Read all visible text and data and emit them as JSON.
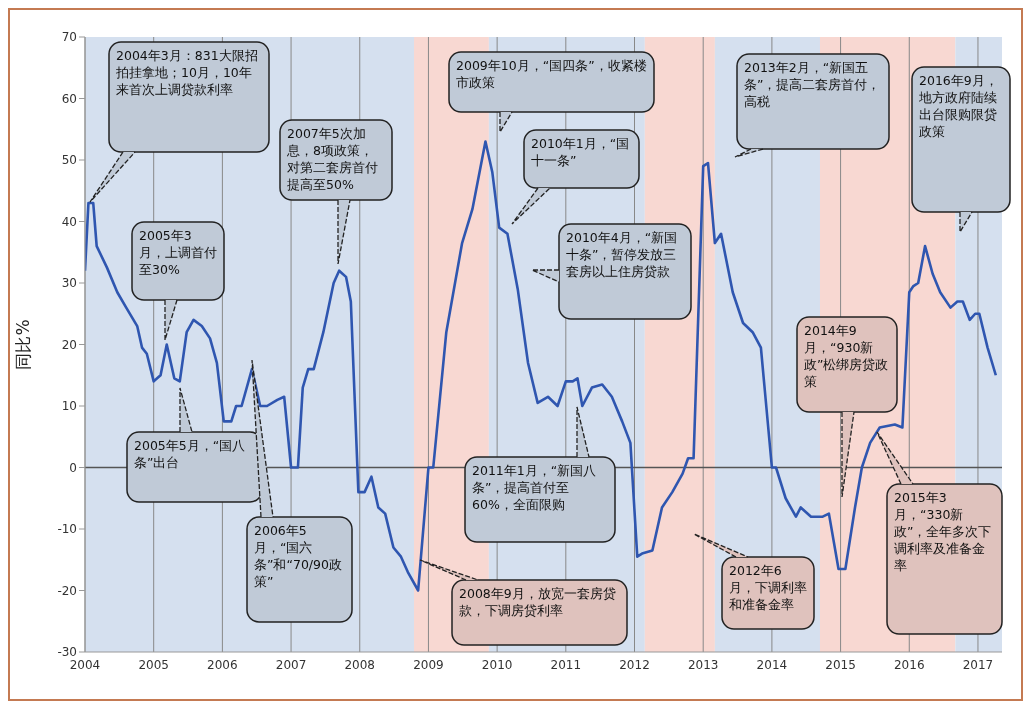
{
  "chart_data": {
    "type": "line",
    "ylabel": "同比%",
    "x": [
      2004.0,
      2004.05,
      2004.12,
      2004.17,
      2004.32,
      2004.47,
      2004.6,
      2004.76,
      2004.83,
      2004.9,
      2005.0,
      2005.05,
      2005.1,
      2005.19,
      2005.3,
      2005.38,
      2005.48,
      2005.58,
      2005.7,
      2005.82,
      2005.92,
      2006.02,
      2006.13,
      2006.2,
      2006.28,
      2006.43,
      2006.55,
      2006.65,
      2006.8,
      2006.9,
      2007.0,
      2007.1,
      2007.17,
      2007.25,
      2007.33,
      2007.47,
      2007.62,
      2007.7,
      2007.8,
      2007.87,
      2007.98,
      2008.07,
      2008.17,
      2008.27,
      2008.37,
      2008.49,
      2008.6,
      2008.7,
      2008.85,
      2009.0,
      2009.07,
      2009.26,
      2009.49,
      2009.64,
      2009.83,
      2009.93,
      2010.03,
      2010.15,
      2010.3,
      2010.45,
      2010.59,
      2010.74,
      2010.88,
      2011.0,
      2011.1,
      2011.17,
      2011.24,
      2011.38,
      2011.53,
      2011.67,
      2011.82,
      2011.94,
      2012.04,
      2012.11,
      2012.26,
      2012.4,
      2012.55,
      2012.7,
      2012.78,
      2012.86,
      2013.0,
      2013.07,
      2013.17,
      2013.26,
      2013.43,
      2013.58,
      2013.72,
      2013.84,
      2014.0,
      2014.06,
      2014.2,
      2014.35,
      2014.42,
      2014.57,
      2014.74,
      2014.83,
      2014.97,
      2015.07,
      2015.21,
      2015.31,
      2015.43,
      2015.57,
      2015.79,
      2015.9,
      2016.0,
      2016.06,
      2016.13,
      2016.23,
      2016.34,
      2016.45,
      2016.6,
      2016.7,
      2016.78,
      2016.88,
      2016.96,
      2017.02,
      2017.14,
      2017.26
    ],
    "series": [
      {
        "color": "#2f56b0",
        "values": [
          32,
          43,
          43,
          36,
          32.5,
          28.5,
          26,
          23,
          19.5,
          18.5,
          14,
          14.5,
          15,
          20,
          14.5,
          14,
          22,
          24,
          23,
          21,
          17,
          7.5,
          7.5,
          10,
          10,
          16,
          10,
          10,
          11,
          11.5,
          0,
          0,
          13,
          16,
          16,
          22,
          30,
          32,
          31,
          27,
          -4,
          -4,
          -1.5,
          -6.5,
          -7.5,
          -13,
          -14.5,
          -17,
          -20,
          0,
          0,
          22,
          36.5,
          42,
          53,
          48,
          39,
          38,
          29,
          17,
          10.5,
          11.5,
          10,
          14,
          14,
          14.5,
          10,
          13,
          13.5,
          11.5,
          7.5,
          4,
          -14.5,
          -14,
          -13.5,
          -6.5,
          -4,
          -1,
          1.5,
          1.5,
          49,
          49.5,
          36.5,
          38,
          28.5,
          23.5,
          22,
          19.5,
          0,
          0,
          -5,
          -8,
          -6.5,
          -8,
          -8,
          -7.5,
          -16.5,
          -16.5,
          -6.5,
          0,
          4,
          6.5,
          7,
          6.5,
          28.5,
          29.5,
          30,
          36,
          31.5,
          28.5,
          26,
          27,
          27,
          24,
          25,
          25,
          19.5,
          15
        ]
      }
    ],
    "xlim": [
      2004,
      2017.35
    ],
    "xticks": [
      2004,
      2005,
      2006,
      2007,
      2008,
      2009,
      2010,
      2011,
      2012,
      2013,
      2014,
      2015,
      2016,
      2017
    ],
    "ylim": [
      -30,
      70
    ],
    "yticks": [
      -30,
      -20,
      -10,
      0,
      10,
      20,
      30,
      40,
      50,
      60,
      70
    ],
    "grid": "x",
    "marker": "none",
    "line_style": "solid",
    "ref_lines": [
      {
        "axis": "y",
        "value": 0,
        "color": "#555555"
      }
    ],
    "bands": [
      {
        "axis": "x",
        "from": 2004,
        "to": 2008.79,
        "color": "#d5e0ef"
      },
      {
        "axis": "x",
        "from": 2008.79,
        "to": 2009.88,
        "color": "#f8d8d2"
      },
      {
        "axis": "x",
        "from": 2009.88,
        "to": 2012.15,
        "color": "#d5e0ef"
      },
      {
        "axis": "x",
        "from": 2012.15,
        "to": 2013.17,
        "color": "#f8d8d2"
      },
      {
        "axis": "x",
        "from": 2013.17,
        "to": 2014.7,
        "color": "#d5e0ef"
      },
      {
        "axis": "x",
        "from": 2014.7,
        "to": 2016.67,
        "color": "#f8d8d2"
      },
      {
        "axis": "x",
        "from": 2016.67,
        "to": 2017.35,
        "color": "#d5e0ef"
      }
    ],
    "annotations": [
      "2004年3月：831大限招拍挂拿地；10月，10年来首次上调贷款利率",
      "2005年3月，上调首付至30%",
      "2005年5月，“国八条”出台",
      "2006年5月，“国六条”和“70/90政策”",
      "2007年5次加息，8项政策，对第二套房首付提高至50%",
      "2008年9月，放宽一套房贷款，下调房贷利率",
      "2009年10月，“国四条”，收紧楼市政策",
      "2010年1月，“国十一条”",
      "2010年4月，“新国十条”，暂停发放三套房以上住房贷款",
      "2011年1月，“新国八条”，提高首付至60%，全面限购",
      "2012年6月，下调利率和准备金率",
      "2013年2月，“新国五条”，提高二套房首付，高税",
      "2014年9月，“930新政”松绑房贷政策",
      "2015年3月，“330新政”，全年多次下调利率及准备金率",
      "2016年9月，地方政府陆续出台限购限贷政策"
    ]
  }
}
